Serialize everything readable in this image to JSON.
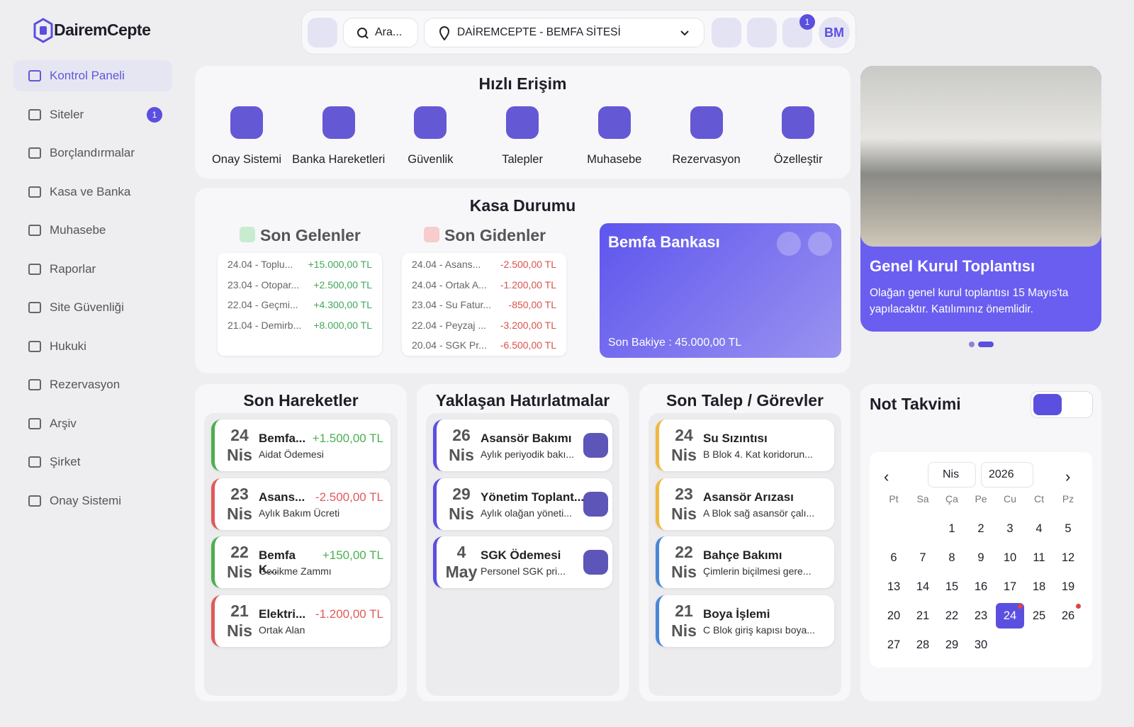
{
  "brand": "DairemCepte",
  "sidebar": {
    "items": [
      {
        "label": "Kontrol Paneli"
      },
      {
        "label": "Siteler",
        "badge": 1
      },
      {
        "label": "Borçlandırmalar"
      },
      {
        "label": "Kasa ve Banka"
      },
      {
        "label": "Muhasebe"
      },
      {
        "label": "Raporlar"
      },
      {
        "label": "Site Güvenliği"
      },
      {
        "label": "Hukuki"
      },
      {
        "label": "Rezervasyon"
      },
      {
        "label": "Arşiv"
      },
      {
        "label": "Şirket"
      },
      {
        "label": "Onay Sistemi"
      }
    ]
  },
  "topbar": {
    "search": "Ara...",
    "site": "DAİREMCEPTE - BEMFA SİTESİ",
    "notifications": 1,
    "avatar": "BM"
  },
  "quick_access": {
    "title": "Hızlı Erişim",
    "items": [
      "Onay Sistemi",
      "Banka Hareketleri",
      "Güvenlik",
      "Talepler",
      "Muhasebe",
      "Rezervasyon",
      "Özelleştir"
    ]
  },
  "cash": {
    "title": "Kasa Durumu",
    "incoming": {
      "title": "Son Gelenler",
      "rows": [
        {
          "label": "24.04 - Toplu...",
          "amount": "+15.000,00 TL"
        },
        {
          "label": "23.04 - Otopar...",
          "amount": "+2.500,00 TL"
        },
        {
          "label": "22.04 - Geçmi...",
          "amount": "+4.300,00 TL"
        },
        {
          "label": "21.04 - Demirb...",
          "amount": "+8.000,00 TL"
        }
      ]
    },
    "outgoing": {
      "title": "Son Gidenler",
      "rows": [
        {
          "label": "24.04 - Asans...",
          "amount": "-2.500,00 TL"
        },
        {
          "label": "24.04 - Ortak A...",
          "amount": "-1.200,00 TL"
        },
        {
          "label": "23.04 - Su Fatur...",
          "amount": "-850,00 TL"
        },
        {
          "label": "22.04 - Peyzaj ...",
          "amount": "-3.200,00 TL"
        },
        {
          "label": "20.04 - SGK Pr...",
          "amount": "-6.500,00 TL"
        }
      ]
    },
    "bank": {
      "name": "Bemfa Bankası",
      "balance": "Son Bakiye : 45.000,00 TL"
    }
  },
  "announcement": {
    "title": "Genel Kurul Toplantısı",
    "text": "Olağan genel kurul toplantısı 15 Mayıs'ta yapılacaktır. Katılımınız önemlidir."
  },
  "movements": {
    "title": "Son Hareketler",
    "items": [
      {
        "day": 24,
        "month": "Nis",
        "title": "Bemfa...",
        "amount": "+1.500,00 TL",
        "desc": "Aidat Ödemesi",
        "color": "#4caf50"
      },
      {
        "day": 23,
        "month": "Nis",
        "title": "Asans...",
        "amount": "-2.500,00 TL",
        "desc": "Aylık Bakım Ücreti",
        "color": "#e05a5a"
      },
      {
        "day": 22,
        "month": "Nis",
        "title": "Bemfa K...",
        "amount": "+150,00 TL",
        "desc": "Gecikme Zammı",
        "color": "#4caf50"
      },
      {
        "day": 21,
        "month": "Nis",
        "title": "Elektri...",
        "amount": "-1.200,00 TL",
        "desc": "Ortak Alan",
        "color": "#e05a5a"
      }
    ]
  },
  "reminders": {
    "title": "Yaklaşan Hatırlatmalar",
    "items": [
      {
        "day": 26,
        "month": "Nis",
        "title": "Asansör Bakımı",
        "desc": "Aylık periyodik bakı..."
      },
      {
        "day": 29,
        "month": "Nis",
        "title": "Yönetim Toplant...",
        "desc": "Aylık olağan yöneti..."
      },
      {
        "day": 4,
        "month": "May",
        "title": "SGK Ödemesi",
        "desc": "Personel SGK pri..."
      }
    ]
  },
  "tasks": {
    "title": "Son Talep / Görevler",
    "items": [
      {
        "day": 24,
        "month": "Nis",
        "title": "Su Sızıntısı",
        "desc": "B Blok 4. Kat koridorun...",
        "color": "#f0b840"
      },
      {
        "day": 23,
        "month": "Nis",
        "title": "Asansör Arızası",
        "desc": "A Blok sağ asansör çalı...",
        "color": "#f0b840"
      },
      {
        "day": 22,
        "month": "Nis",
        "title": "Bahçe Bakımı",
        "desc": "Çimlerin biçilmesi gere...",
        "color": "#4a86d8"
      },
      {
        "day": 21,
        "month": "Nis",
        "title": "Boya İşlemi",
        "desc": "C Blok giriş kapısı boya...",
        "color": "#4a86d8"
      }
    ]
  },
  "calendar": {
    "title": "Not Takvimi",
    "month": "Nis",
    "year": 2026,
    "weekdays": [
      "Pt",
      "Sa",
      "Ça",
      "Pe",
      "Cu",
      "Ct",
      "Pz"
    ],
    "weeks": [
      [
        null,
        null,
        1,
        2,
        3,
        4,
        5
      ],
      [
        6,
        7,
        8,
        9,
        10,
        11,
        12
      ],
      [
        13,
        14,
        15,
        16,
        17,
        18,
        19
      ],
      [
        20,
        21,
        22,
        23,
        24,
        25,
        26
      ],
      [
        27,
        28,
        29,
        30,
        null,
        null,
        null
      ]
    ],
    "selected": 24,
    "marked": [
      24,
      26
    ]
  }
}
